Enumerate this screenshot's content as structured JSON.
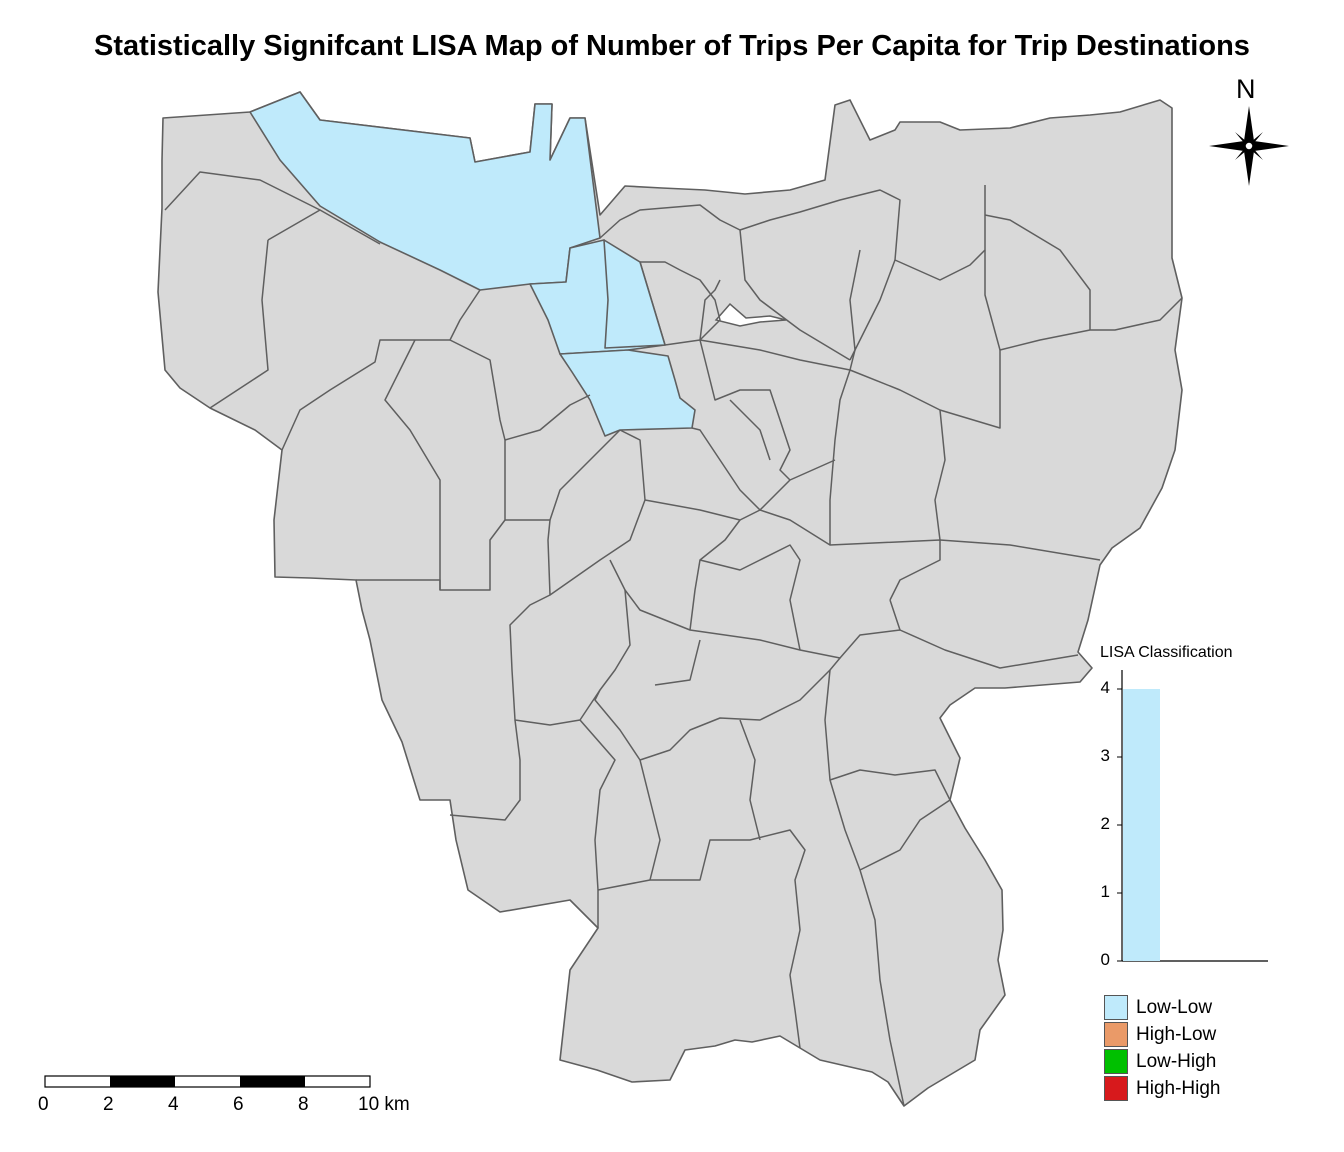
{
  "title": "Statistically Signifcant LISA Map of Number of Trips Per Capita for Trip Destinations",
  "north_arrow": {
    "label": "N",
    "icon": "compass-rose-icon"
  },
  "histogram": {
    "title": "LISA Classification",
    "yticks": [
      "0",
      "1",
      "2",
      "3",
      "4"
    ],
    "bars": [
      {
        "class": "Low-Low",
        "count": 4,
        "color": "#bfeafb"
      }
    ],
    "ylim": [
      0,
      4
    ]
  },
  "legend": {
    "items": [
      {
        "label": "Low-Low",
        "color": "#bfeafb"
      },
      {
        "label": "High-Low",
        "color": "#ea9a68"
      },
      {
        "label": "Low-High",
        "color": "#00c000"
      },
      {
        "label": "High-High",
        "color": "#d7191c"
      }
    ]
  },
  "scale_bar": {
    "labels": [
      "0",
      "2",
      "4",
      "6",
      "8",
      "10 km"
    ]
  },
  "map": {
    "fill_default": "#d9d9d9",
    "fill_low_low": "#bfeafb",
    "border_color": "#5f5f5f"
  }
}
